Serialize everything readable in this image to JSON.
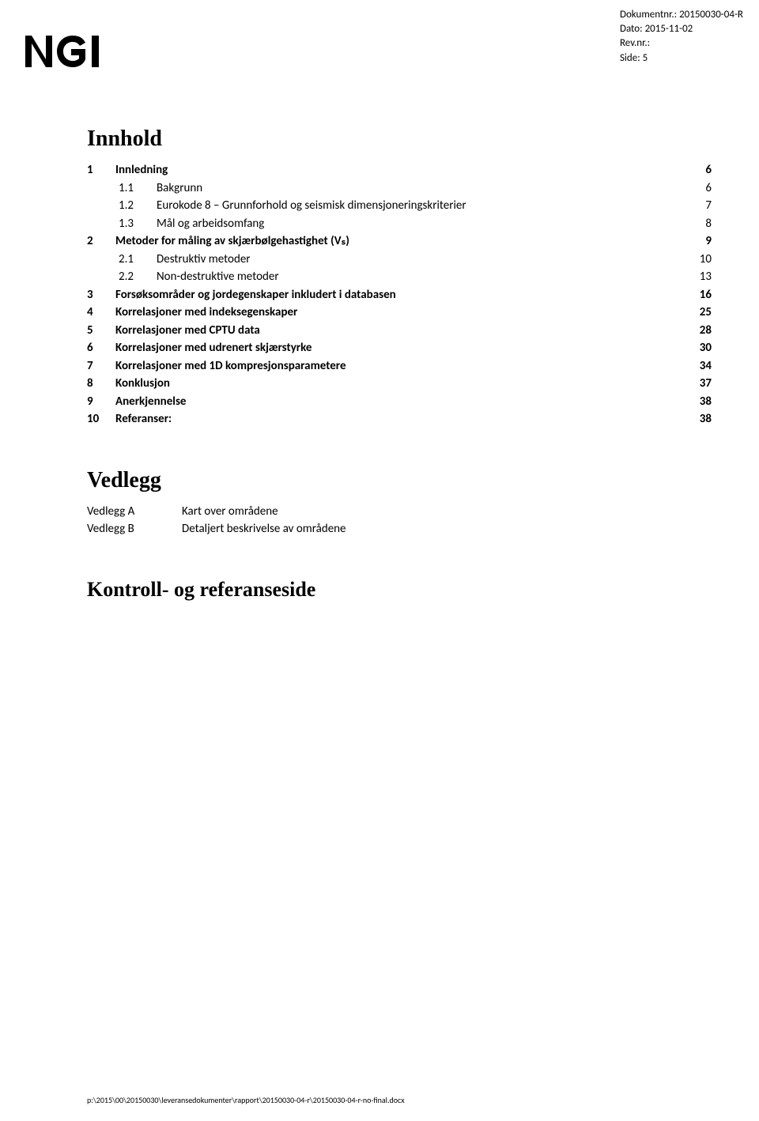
{
  "header": {
    "doc_nr_label": "Dokumentnr.:",
    "doc_nr_value": "20150030-04-R",
    "date_label": "Dato:",
    "date_value": "2015-11-02",
    "rev_label": "Rev.nr.:",
    "side_label": "Side:",
    "side_value": "5"
  },
  "logo_text": "NGI",
  "innhold": {
    "title": "Innhold",
    "items": [
      {
        "num": "1",
        "text": "Innledning",
        "page": "6",
        "bold": true,
        "indent": false
      },
      {
        "num": "1.1",
        "text": "Bakgrunn",
        "page": "6",
        "bold": false,
        "indent": true
      },
      {
        "num": "1.2",
        "text": "Eurokode 8 – Grunnforhold og seismisk dimensjoneringskriterier",
        "page": "7",
        "bold": false,
        "indent": true
      },
      {
        "num": "1.3",
        "text": "Mål og arbeidsomfang",
        "page": "8",
        "bold": false,
        "indent": true
      },
      {
        "num": "2",
        "text": "Metoder for måling av skjærbølgehastighet (Vₛ)",
        "page": "9",
        "bold": true,
        "indent": false
      },
      {
        "num": "2.1",
        "text": "Destruktiv metoder",
        "page": "10",
        "bold": false,
        "indent": true
      },
      {
        "num": "2.2",
        "text": "Non-destruktive metoder",
        "page": "13",
        "bold": false,
        "indent": true
      },
      {
        "num": "3",
        "text": "Forsøksområder og jordegenskaper inkludert i databasen",
        "page": "16",
        "bold": true,
        "indent": false
      },
      {
        "num": "4",
        "text": "Korrelasjoner med indeksegenskaper",
        "page": "25",
        "bold": true,
        "indent": false
      },
      {
        "num": "5",
        "text": "Korrelasjoner med CPTU data",
        "page": "28",
        "bold": true,
        "indent": false
      },
      {
        "num": "6",
        "text": "Korrelasjoner med udrenert skjærstyrke",
        "page": "30",
        "bold": true,
        "indent": false
      },
      {
        "num": "7",
        "text": "Korrelasjoner med 1D kompresjonsparametere",
        "page": "34",
        "bold": true,
        "indent": false
      },
      {
        "num": "8",
        "text": "Konklusjon",
        "page": "37",
        "bold": true,
        "indent": false
      },
      {
        "num": "9",
        "text": "Anerkjennelse",
        "page": "38",
        "bold": true,
        "indent": false
      },
      {
        "num": "10",
        "text": "Referanser:",
        "page": "38",
        "bold": true,
        "indent": false
      }
    ]
  },
  "vedlegg": {
    "title": "Vedlegg",
    "items": [
      {
        "label": "Vedlegg A",
        "text": "Kart over områdene"
      },
      {
        "label": "Vedlegg B",
        "text": "Detaljert beskrivelse av områdene"
      }
    ]
  },
  "kontroll_title": "Kontroll- og referanseside",
  "footer_path": "p:\\2015\\00\\20150030\\leveransedokumenter\\rapport\\20150030-04-r\\20150030-04-r-no-final.docx"
}
